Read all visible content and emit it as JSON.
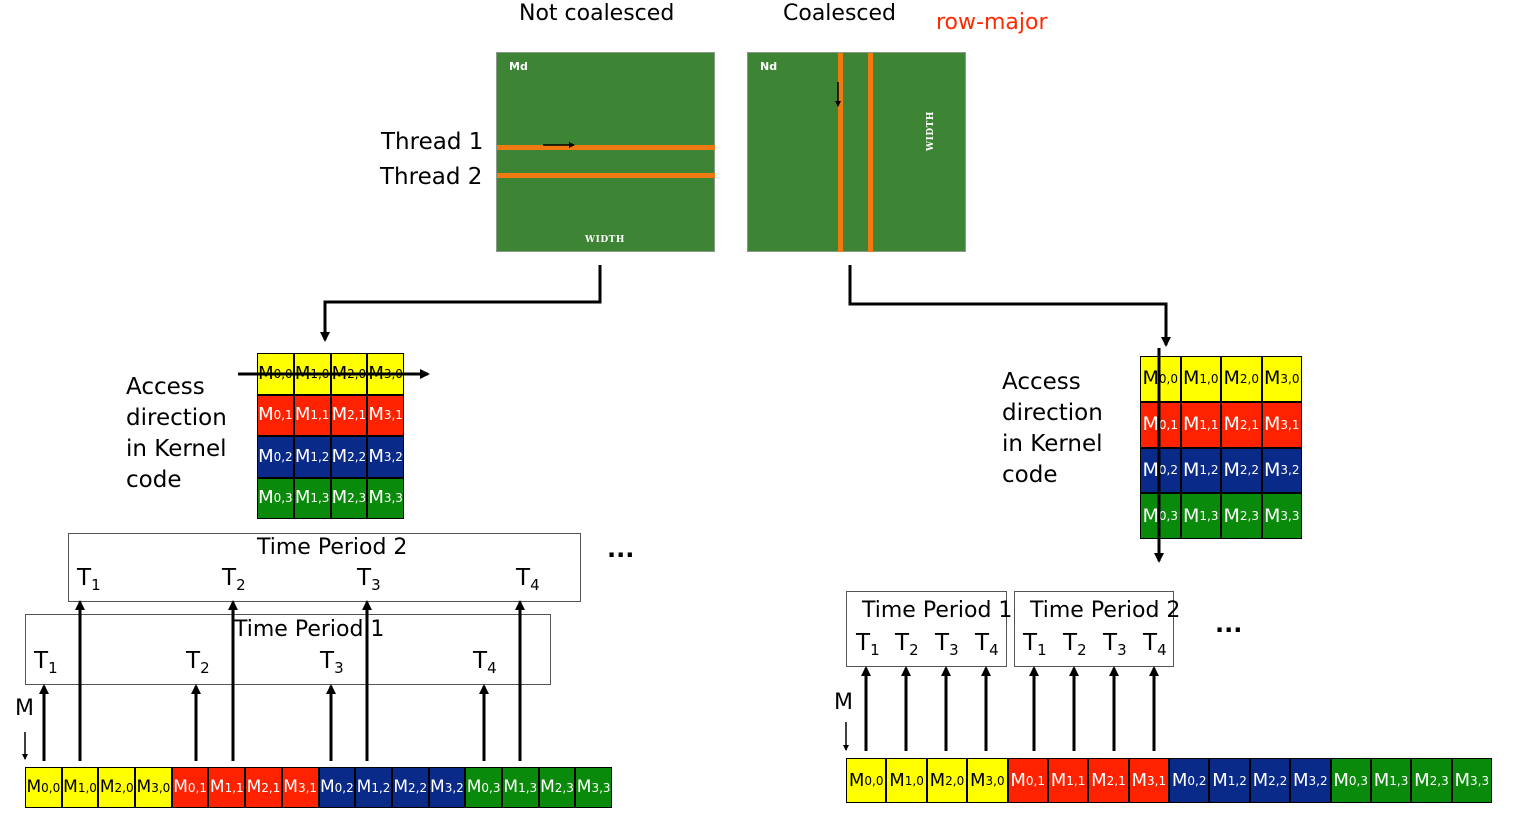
{
  "headers": {
    "left": "Not coalesced",
    "right": "Coalesced",
    "note": "row-major"
  },
  "panels": {
    "md_name": "Md",
    "nd_name": "Nd",
    "width_label": "WIDTH"
  },
  "threads": [
    "Thread 1",
    "Thread 2"
  ],
  "access_label": [
    "Access",
    "direction",
    "in Kernel",
    "code"
  ],
  "matrix_rows": [
    {
      "color": "#ffff00",
      "text_color": "#000000",
      "cells": [
        [
          "M",
          "0,0"
        ],
        [
          "M",
          "1,0"
        ],
        [
          "M",
          "2,0"
        ],
        [
          "M",
          "3,0"
        ]
      ]
    },
    {
      "color": "#ff2200",
      "text_color": "#ffffff",
      "cells": [
        [
          "M",
          "0,1"
        ],
        [
          "M",
          "1,1"
        ],
        [
          "M",
          "2,1"
        ],
        [
          "M",
          "3,1"
        ]
      ]
    },
    {
      "color": "#0a2a8a",
      "text_color": "#ffffff",
      "cells": [
        [
          "M",
          "0,2"
        ],
        [
          "M",
          "1,2"
        ],
        [
          "M",
          "2,2"
        ],
        [
          "M",
          "3,2"
        ]
      ]
    },
    {
      "color": "#0a8a0a",
      "text_color": "#ffffff",
      "cells": [
        [
          "M",
          "0,3"
        ],
        [
          "M",
          "1,3"
        ],
        [
          "M",
          "2,3"
        ],
        [
          "M",
          "3,3"
        ]
      ]
    }
  ],
  "time_periods": [
    "Time Period 1",
    "Time Period 2"
  ],
  "thread_labels": [
    [
      "T",
      "1"
    ],
    [
      "T",
      "2"
    ],
    [
      "T",
      "3"
    ],
    [
      "T",
      "4"
    ]
  ],
  "memory_label": "M",
  "ellipsis": "..."
}
